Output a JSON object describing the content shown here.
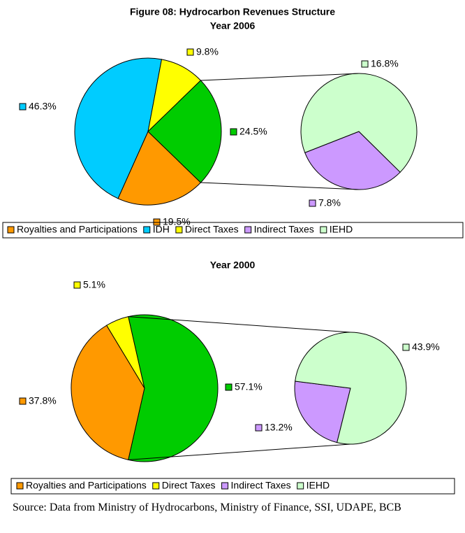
{
  "chart_data": [
    {
      "type": "pie-of-pie",
      "title": "Figure 08: Hydrocarbon Revenues Structure",
      "subtitle": "Year 2006",
      "main": {
        "categories": [
          "Royalties and Participations",
          "IDH",
          "Direct Taxes"
        ],
        "values": [
          19.5,
          46.3,
          9.8
        ],
        "value_labels": [
          "19.5%",
          "46.3%",
          "9.8%"
        ],
        "colors": [
          "#FF9900",
          "#00CCFF",
          "#FFFF00"
        ]
      },
      "other": {
        "value": 24.5,
        "value_label": "24.5%",
        "color": "#00CC00"
      },
      "secondary": {
        "categories": [
          "Indirect Taxes",
          "IEHD"
        ],
        "values": [
          7.8,
          16.8
        ],
        "value_labels": [
          "7.8%",
          "16.8%"
        ],
        "colors": [
          "#CC99FF",
          "#CCFFCC"
        ]
      }
    },
    {
      "type": "pie-of-pie",
      "title": "Year 2000",
      "main": {
        "categories": [
          "Royalties and Participations",
          "Direct Taxes"
        ],
        "values": [
          37.8,
          5.1
        ],
        "value_labels": [
          "37.8%",
          "5.1%"
        ],
        "colors": [
          "#FF9900",
          "#FFFF00"
        ]
      },
      "other": {
        "value": 57.1,
        "value_label": "57.1%",
        "color": "#00CC00"
      },
      "secondary": {
        "categories": [
          "Indirect Taxes",
          "IEHD"
        ],
        "values": [
          13.2,
          43.9
        ],
        "value_labels": [
          "13.2%",
          "43.9%"
        ],
        "colors": [
          "#CC99FF",
          "#CCFFCC"
        ]
      }
    }
  ],
  "source": "Source: Data from Ministry of Hydrocarbons, Ministry of Finance, SSI, UDAPE, BCB"
}
